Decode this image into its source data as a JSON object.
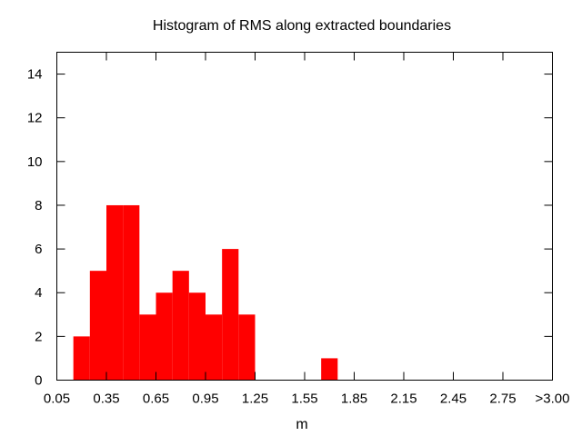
{
  "chart_data": {
    "type": "bar",
    "title": "Histogram of RMS along extracted boundaries",
    "xlabel": "m",
    "ylabel": "",
    "xlim": [
      0.05,
      3.05
    ],
    "ylim": [
      0,
      15
    ],
    "bin_width": 0.1,
    "x_ticks": [
      {
        "value": 0.05,
        "label": "0.05"
      },
      {
        "value": 0.35,
        "label": "0.35"
      },
      {
        "value": 0.65,
        "label": "0.65"
      },
      {
        "value": 0.95,
        "label": "0.95"
      },
      {
        "value": 1.25,
        "label": "1.25"
      },
      {
        "value": 1.55,
        "label": "1.55"
      },
      {
        "value": 1.85,
        "label": "1.85"
      },
      {
        "value": 2.15,
        "label": "2.15"
      },
      {
        "value": 2.45,
        "label": "2.45"
      },
      {
        "value": 2.75,
        "label": "2.75"
      },
      {
        "value": 3.05,
        "label": ">3.00"
      }
    ],
    "y_ticks": [
      0,
      2,
      4,
      6,
      8,
      10,
      12,
      14
    ],
    "bins": [
      {
        "x": 0.2,
        "value": 2
      },
      {
        "x": 0.3,
        "value": 5
      },
      {
        "x": 0.4,
        "value": 8
      },
      {
        "x": 0.5,
        "value": 8
      },
      {
        "x": 0.6,
        "value": 3
      },
      {
        "x": 0.7,
        "value": 4
      },
      {
        "x": 0.8,
        "value": 5
      },
      {
        "x": 0.9,
        "value": 4
      },
      {
        "x": 1.0,
        "value": 3
      },
      {
        "x": 1.1,
        "value": 6
      },
      {
        "x": 1.2,
        "value": 3
      },
      {
        "x": 1.7,
        "value": 1
      }
    ],
    "bar_color": "#ff0000",
    "grid": false,
    "legend": "none"
  }
}
